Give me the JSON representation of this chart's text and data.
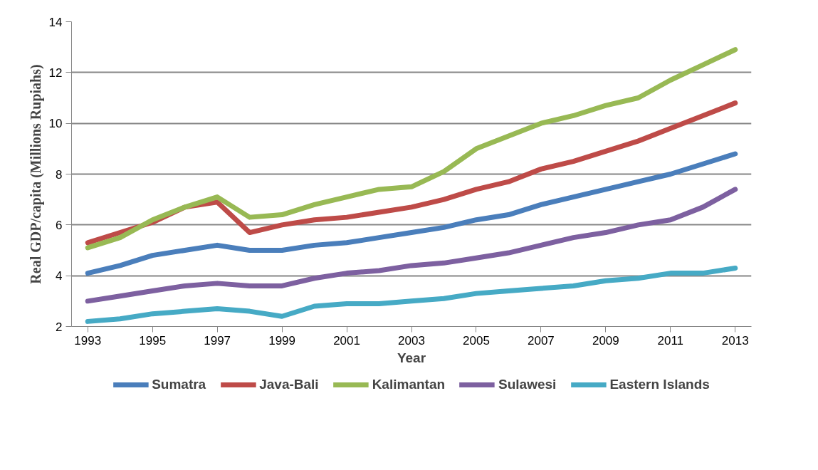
{
  "chart_data": {
    "type": "line",
    "xlabel": "Year",
    "ylabel": "Real GDP/capita (Millions Rupiahs)",
    "x": [
      1993,
      1994,
      1995,
      1996,
      1997,
      1998,
      1999,
      2000,
      2001,
      2002,
      2003,
      2004,
      2005,
      2006,
      2007,
      2008,
      2009,
      2010,
      2011,
      2012,
      2013
    ],
    "xlim": [
      1992.5,
      2013.5
    ],
    "xticks": [
      1993,
      1995,
      1997,
      1999,
      2001,
      2003,
      2005,
      2007,
      2009,
      2011,
      2013
    ],
    "ylim": [
      2,
      14
    ],
    "yticks": [
      2,
      4,
      6,
      8,
      10,
      12,
      14
    ],
    "grid": "y",
    "legend": "bottom",
    "marker": "none",
    "line_style": "solid",
    "series": [
      {
        "name": "Sumatra",
        "color": "#4a7ebb",
        "values": [
          4.1,
          4.4,
          4.8,
          5.0,
          5.2,
          5.0,
          5.0,
          5.2,
          5.3,
          5.5,
          5.7,
          5.9,
          6.2,
          6.4,
          6.8,
          7.1,
          7.4,
          7.7,
          8.0,
          8.4,
          8.8
        ]
      },
      {
        "name": "Java-Bali",
        "color": "#be4b48",
        "values": [
          5.3,
          5.7,
          6.1,
          6.7,
          6.9,
          5.7,
          6.0,
          6.2,
          6.3,
          6.5,
          6.7,
          7.0,
          7.4,
          7.7,
          8.2,
          8.5,
          8.9,
          9.3,
          9.8,
          10.3,
          10.8
        ]
      },
      {
        "name": "Kalimantan",
        "color": "#98b954",
        "values": [
          5.1,
          5.5,
          6.2,
          6.7,
          7.1,
          6.3,
          6.4,
          6.8,
          7.1,
          7.4,
          7.5,
          8.1,
          9.0,
          9.5,
          10.0,
          10.3,
          10.7,
          11.0,
          11.7,
          12.3,
          12.9
        ]
      },
      {
        "name": "Sulawesi",
        "color": "#7d60a0",
        "values": [
          3.0,
          3.2,
          3.4,
          3.6,
          3.7,
          3.6,
          3.6,
          3.9,
          4.1,
          4.2,
          4.4,
          4.5,
          4.7,
          4.9,
          5.2,
          5.5,
          5.7,
          6.0,
          6.2,
          6.7,
          7.4
        ]
      },
      {
        "name": "Eastern Islands",
        "color": "#46aac5",
        "values": [
          2.2,
          2.3,
          2.5,
          2.6,
          2.7,
          2.6,
          2.4,
          2.8,
          2.9,
          2.9,
          3.0,
          3.1,
          3.3,
          3.4,
          3.5,
          3.6,
          3.8,
          3.9,
          4.1,
          4.1,
          4.3
        ]
      }
    ]
  }
}
